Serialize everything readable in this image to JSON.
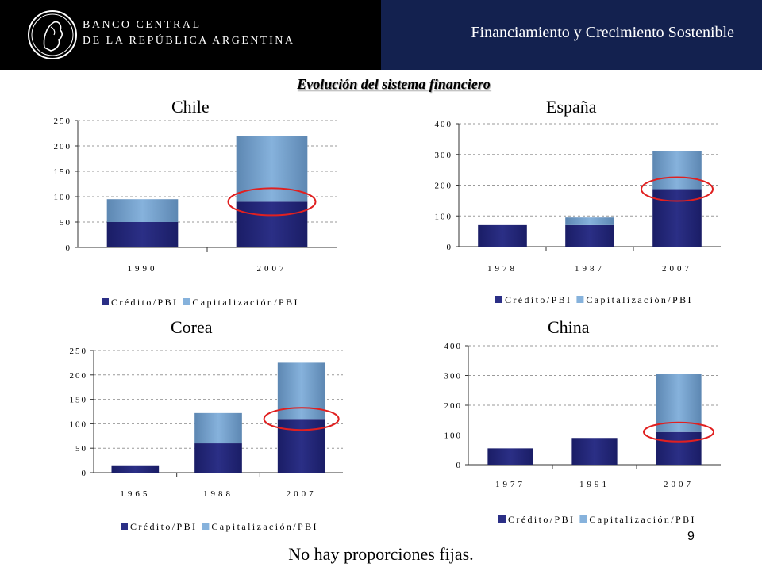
{
  "header": {
    "bank_line1": "BANCO CENTRAL",
    "bank_line2": "DE LA REPÚBLICA ARGENTINA",
    "title": "Financiamiento y Crecimiento Sostenible"
  },
  "section_title": "Evolución del sistema financiero",
  "colors": {
    "credit": "#2b2f86",
    "cap": "#86b2dc",
    "highlight": "#e02020"
  },
  "chart_data": [
    {
      "type": "bar",
      "stacked": true,
      "title": "Chile",
      "categories": [
        "1990",
        "2007"
      ],
      "series": [
        {
          "name": "Crédito/PBI",
          "values": [
            50,
            90
          ]
        },
        {
          "name": "Capitalización/PBI",
          "values": [
            45,
            130
          ]
        }
      ],
      "ylim": [
        0,
        250
      ],
      "yticks": [
        0,
        50,
        100,
        150,
        200,
        250
      ],
      "grid": true,
      "legend": "bottom",
      "highlight": {
        "category": "2007",
        "value": 90
      }
    },
    {
      "type": "bar",
      "stacked": true,
      "title": "España",
      "categories": [
        "1978",
        "1987",
        "2007"
      ],
      "series": [
        {
          "name": "Crédito/PBI",
          "values": [
            70,
            70,
            187
          ]
        },
        {
          "name": "Capitalización/PBI",
          "values": [
            0,
            25,
            125
          ]
        }
      ],
      "ylim": [
        0,
        400
      ],
      "yticks": [
        0,
        100,
        200,
        300,
        400
      ],
      "grid": true,
      "legend": "bottom",
      "highlight": {
        "category": "2007",
        "value": 187
      }
    },
    {
      "type": "bar",
      "stacked": true,
      "title": "Corea",
      "categories": [
        "1965",
        "1988",
        "2007"
      ],
      "series": [
        {
          "name": "Crédito/PBI",
          "values": [
            15,
            60,
            110
          ]
        },
        {
          "name": "Capitalización/PBI",
          "values": [
            0,
            62,
            115
          ]
        }
      ],
      "ylim": [
        0,
        250
      ],
      "yticks": [
        0,
        50,
        100,
        150,
        200,
        250
      ],
      "grid": true,
      "legend": "bottom",
      "highlight": {
        "category": "2007",
        "value": 110
      }
    },
    {
      "type": "bar",
      "stacked": true,
      "title": "China",
      "categories": [
        "1977",
        "1991",
        "2007"
      ],
      "series": [
        {
          "name": "Crédito/PBI",
          "values": [
            55,
            90,
            110
          ]
        },
        {
          "name": "Capitalización/PBI",
          "values": [
            0,
            0,
            195
          ]
        }
      ],
      "ylim": [
        0,
        400
      ],
      "yticks": [
        0,
        100,
        200,
        300,
        400
      ],
      "grid": true,
      "legend": "bottom",
      "highlight": {
        "category": "2007",
        "value": 110
      }
    }
  ],
  "footer_note": "No hay proporciones fijas.",
  "page_number": "9"
}
